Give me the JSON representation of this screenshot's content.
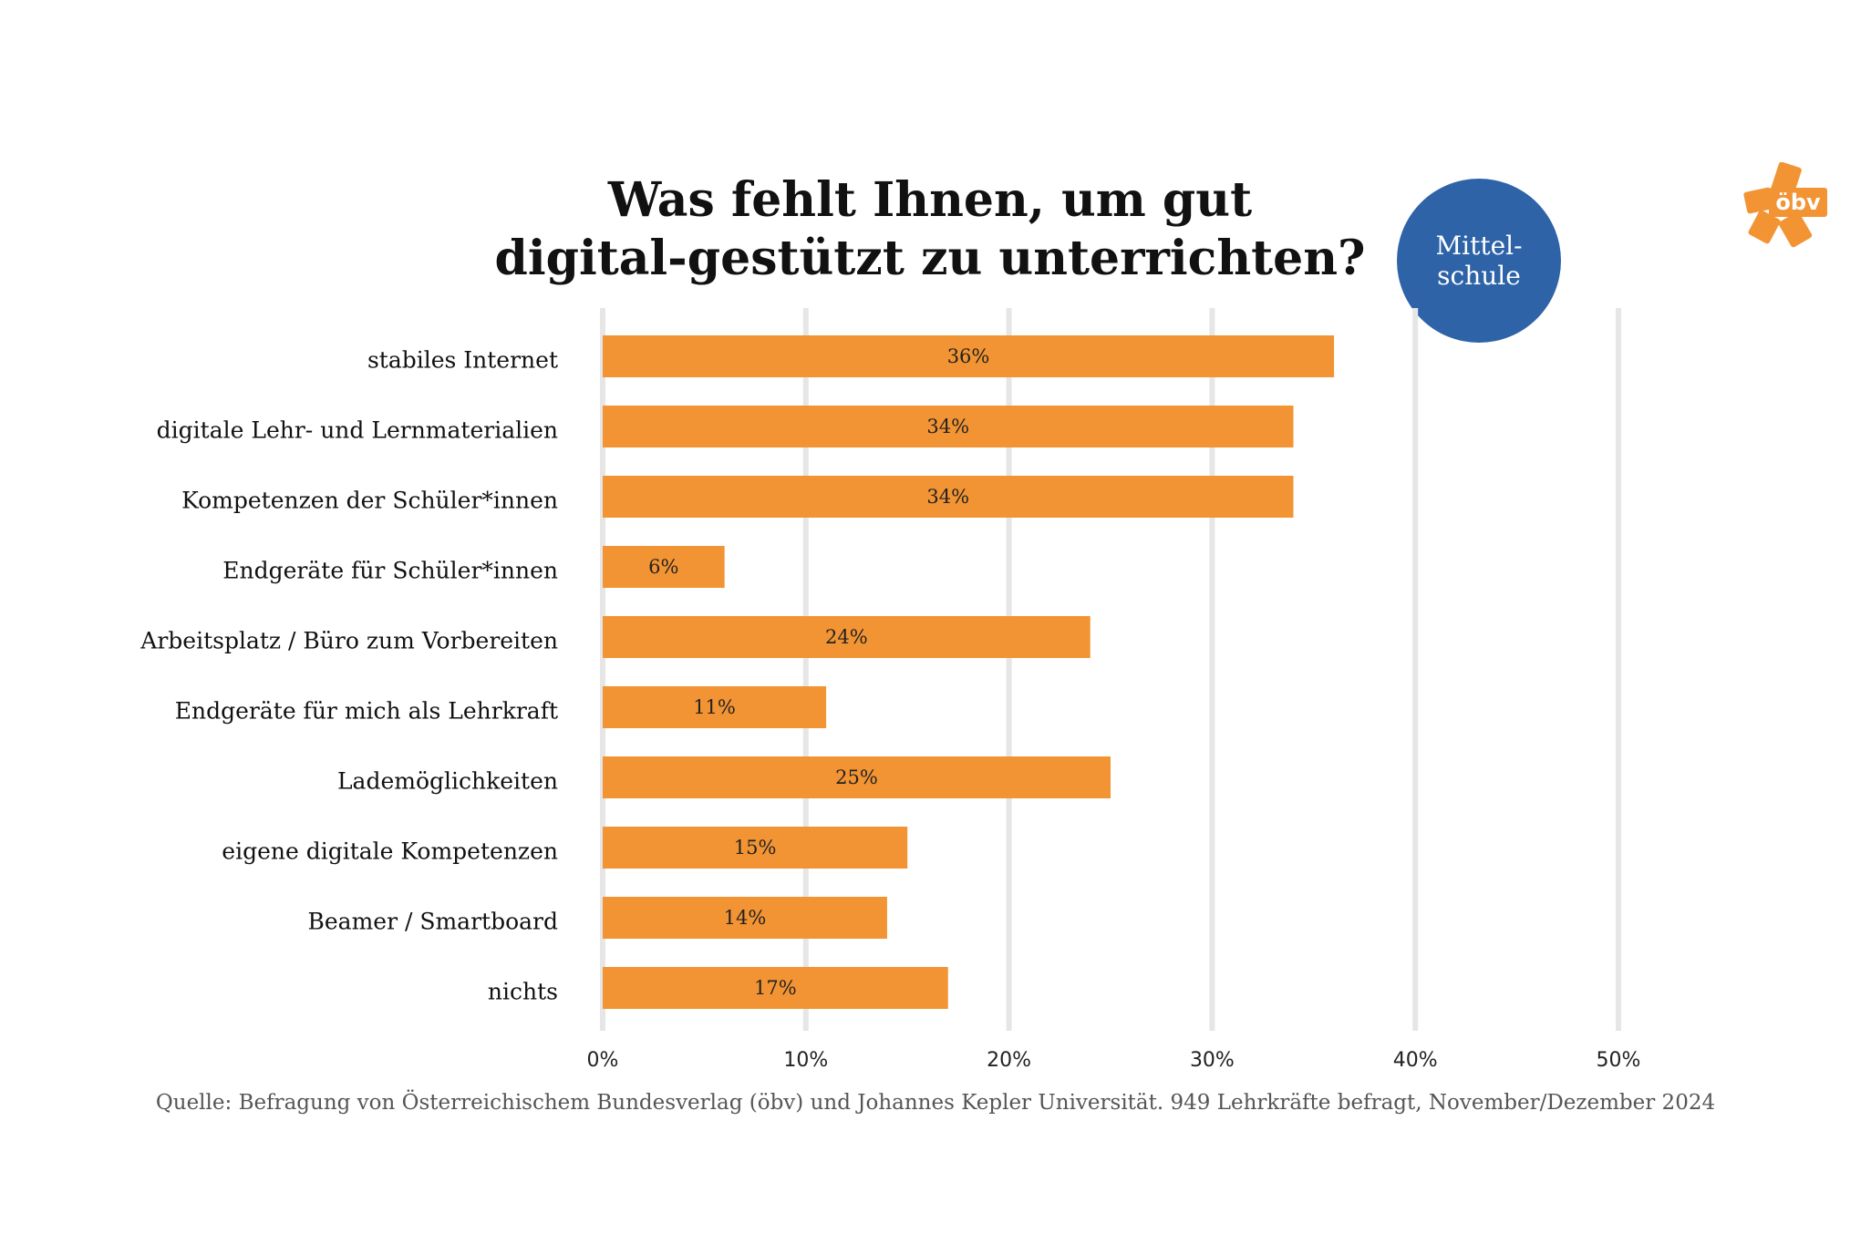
{
  "colors": {
    "bar": "#F29433",
    "grid": "#E6E6E6",
    "badge": "#2E63A8",
    "logo": "#F29433",
    "text": "#111111"
  },
  "badge": {
    "line1": "Mittel-",
    "line2": "schule"
  },
  "logo": {
    "text": "öbv"
  },
  "source": "Quelle: Befragung von Österreichischem Bundesverlag (öbv) und Johannes Kepler Universität. 949 Lehrkräfte befragt, November/Dezember 2024",
  "chart_data": {
    "type": "bar",
    "orientation": "horizontal",
    "title_lines": [
      "Was fehlt Ihnen, um gut",
      "digital-gestützt zu unterrichten?"
    ],
    "categories": [
      "stabiles Internet",
      "digitale Lehr- und Lernmaterialien",
      "Kompetenzen der Schüler*innen",
      "Endgeräte für Schüler*innen",
      "Arbeitsplatz / Büro zum Vorbereiten",
      "Endgeräte für mich als Lehrkraft",
      "Lademöglichkeiten",
      "eigene digitale Kompetenzen",
      "Beamer / Smartboard",
      "nichts"
    ],
    "values": [
      36,
      34,
      34,
      6,
      24,
      11,
      25,
      15,
      14,
      17
    ],
    "value_labels": [
      "36%",
      "34%",
      "34%",
      "6%",
      "24%",
      "11%",
      "25%",
      "15%",
      "14%",
      "17%"
    ],
    "xlim": [
      0,
      50
    ],
    "xticks": [
      0,
      10,
      20,
      30,
      40,
      50
    ],
    "xtick_labels": [
      "0%",
      "10%",
      "20%",
      "30%",
      "40%",
      "50%"
    ],
    "grid": true,
    "legend": "none"
  }
}
